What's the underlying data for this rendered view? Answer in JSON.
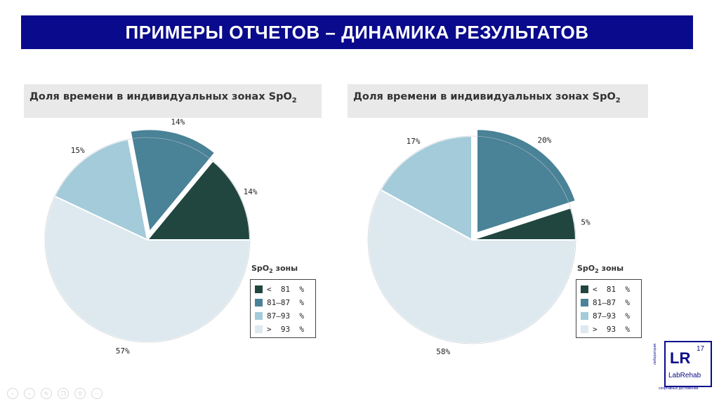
{
  "slide": {
    "title": "ПРИМЕРЫ ОТЧЕТОВ – ДИНАМИКА РЕЗУЛЬТАТОВ",
    "logo": {
      "letters": "LR",
      "number": "17",
      "name": "LabRehab",
      "vertical_text": "лаборатория",
      "subtext": "спортивных достижений"
    },
    "toolbar_icons": [
      "prev-icon",
      "next-icon",
      "pen-icon",
      "copy-icon",
      "zoom-icon",
      "more-icon"
    ]
  },
  "colors": {
    "title_bg": "#0a0a8c",
    "zone_lt81": "#20463f",
    "zone_81_87": "#4a8297",
    "zone_87_93": "#a3cbd9",
    "zone_gt93": "#dde9ef"
  },
  "chart_data": [
    {
      "type": "pie",
      "title_main": "Доля времени в индивидуальных зонах SpO",
      "title_sub": "2",
      "legend_title_main": "SpO",
      "legend_title_sub": "2",
      "legend_title_rest": " зоны",
      "categories": [
        "<  81  %",
        "81–87  %",
        "87–93  %",
        ">  93  %"
      ],
      "values": [
        14,
        14,
        15,
        57
      ],
      "value_labels": [
        "14%",
        "14%",
        "15%",
        "57%"
      ],
      "exploded": [
        false,
        true,
        false,
        false
      ]
    },
    {
      "type": "pie",
      "title_main": "Доля времени в индивидуальных зонах SpO",
      "title_sub": "2",
      "legend_title_main": "SpO",
      "legend_title_sub": "2",
      "legend_title_rest": " зоны",
      "categories": [
        "<  81  %",
        "81–87  %",
        "87–93  %",
        ">  93  %"
      ],
      "values": [
        5,
        20,
        17,
        58
      ],
      "value_labels": [
        "5%",
        "20%",
        "17%",
        "58%"
      ],
      "exploded": [
        false,
        true,
        false,
        false
      ]
    }
  ]
}
